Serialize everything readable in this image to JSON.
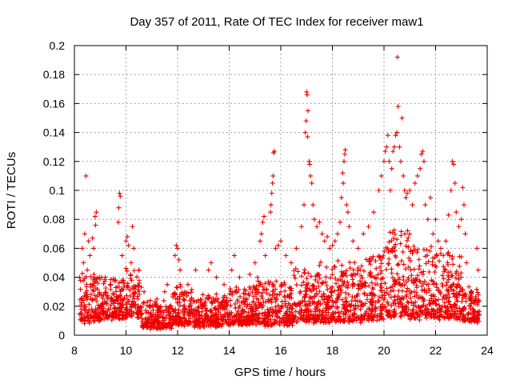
{
  "chart_data": {
    "type": "scatter",
    "title": "Day 357 of 2011, Rate Of TEC Index for receiver maw1",
    "xlabel": "GPS time / hours",
    "ylabel": "ROTI / TECUs",
    "xlim": [
      8,
      24
    ],
    "ylim": [
      0,
      0.2
    ],
    "x_ticks": [
      8,
      10,
      12,
      14,
      16,
      18,
      20,
      22,
      24
    ],
    "x_tick_labels": [
      "8",
      "10",
      "12",
      "14",
      "16",
      "18",
      "20",
      "22",
      "24"
    ],
    "y_ticks": [
      0,
      0.02,
      0.04,
      0.06,
      0.08,
      0.1,
      0.12,
      0.14,
      0.16,
      0.18,
      0.2
    ],
    "y_tick_labels": [
      "0",
      "0.02",
      "0.04",
      "0.06",
      "0.08",
      "0.1",
      "0.12",
      "0.14",
      "0.16",
      "0.18",
      "0.2"
    ],
    "grid": true,
    "marker": "+",
    "color": "#ee0000",
    "background_profile": {
      "description": "dense point cloud per time bin: [hour_start, hour_end, base_roti, spread_roti]",
      "bins": [
        [
          8.2,
          9.0,
          0.008,
          0.035
        ],
        [
          9.0,
          10.0,
          0.01,
          0.03
        ],
        [
          10.0,
          10.6,
          0.012,
          0.035
        ],
        [
          10.6,
          11.8,
          0.004,
          0.018
        ],
        [
          11.8,
          12.6,
          0.006,
          0.03
        ],
        [
          12.6,
          14.0,
          0.005,
          0.022
        ],
        [
          14.0,
          15.0,
          0.006,
          0.028
        ],
        [
          15.0,
          16.5,
          0.006,
          0.032
        ],
        [
          16.5,
          17.5,
          0.008,
          0.038
        ],
        [
          17.5,
          19.2,
          0.008,
          0.045
        ],
        [
          19.2,
          20.0,
          0.01,
          0.05
        ],
        [
          20.0,
          21.0,
          0.012,
          0.065
        ],
        [
          21.0,
          22.0,
          0.01,
          0.055
        ],
        [
          22.0,
          23.0,
          0.01,
          0.05
        ],
        [
          23.0,
          23.7,
          0.008,
          0.025
        ]
      ]
    },
    "series": [
      {
        "name": "maw1 ROTI",
        "points": [
          [
            8.3,
            0.06
          ],
          [
            8.35,
            0.05
          ],
          [
            8.4,
            0.07
          ],
          [
            8.45,
            0.11
          ],
          [
            8.5,
            0.045
          ],
          [
            8.55,
            0.065
          ],
          [
            8.6,
            0.055
          ],
          [
            8.7,
            0.067
          ],
          [
            8.8,
            0.082
          ],
          [
            8.82,
            0.076
          ],
          [
            8.85,
            0.085
          ],
          [
            8.75,
            0.06
          ],
          [
            9.2,
            0.04
          ],
          [
            9.4,
            0.035
          ],
          [
            9.6,
            0.038
          ],
          [
            9.75,
            0.098
          ],
          [
            9.78,
            0.096
          ],
          [
            9.72,
            0.088
          ],
          [
            9.7,
            0.078
          ],
          [
            9.85,
            0.055
          ],
          [
            10.0,
            0.065
          ],
          [
            10.05,
            0.068
          ],
          [
            10.1,
            0.062
          ],
          [
            10.25,
            0.075
          ],
          [
            10.3,
            0.06
          ],
          [
            10.2,
            0.05
          ],
          [
            10.5,
            0.045
          ],
          [
            10.7,
            0.03
          ],
          [
            11.2,
            0.025
          ],
          [
            11.5,
            0.03
          ],
          [
            11.6,
            0.035
          ],
          [
            11.9,
            0.055
          ],
          [
            11.95,
            0.062
          ],
          [
            12.0,
            0.06
          ],
          [
            12.05,
            0.052
          ],
          [
            12.1,
            0.045
          ],
          [
            12.4,
            0.035
          ],
          [
            12.7,
            0.045
          ],
          [
            13.2,
            0.045
          ],
          [
            13.3,
            0.05
          ],
          [
            13.5,
            0.04
          ],
          [
            13.8,
            0.035
          ],
          [
            14.1,
            0.045
          ],
          [
            14.2,
            0.055
          ],
          [
            14.4,
            0.04
          ],
          [
            14.8,
            0.042
          ],
          [
            15.0,
            0.05
          ],
          [
            15.1,
            0.04
          ],
          [
            15.2,
            0.065
          ],
          [
            15.3,
            0.078
          ],
          [
            15.35,
            0.082
          ],
          [
            15.25,
            0.07
          ],
          [
            15.4,
            0.055
          ],
          [
            15.6,
            0.085
          ],
          [
            15.65,
            0.098
          ],
          [
            15.7,
            0.11
          ],
          [
            15.72,
            0.126
          ],
          [
            15.75,
            0.127
          ],
          [
            15.68,
            0.105
          ],
          [
            15.62,
            0.09
          ],
          [
            15.8,
            0.06
          ],
          [
            15.9,
            0.062
          ],
          [
            16.0,
            0.065
          ],
          [
            16.2,
            0.055
          ],
          [
            16.4,
            0.05
          ],
          [
            16.6,
            0.06
          ],
          [
            16.8,
            0.075
          ],
          [
            16.9,
            0.09
          ],
          [
            16.95,
            0.14
          ],
          [
            17.0,
            0.168
          ],
          [
            17.02,
            0.166
          ],
          [
            17.05,
            0.155
          ],
          [
            16.98,
            0.148
          ],
          [
            17.04,
            0.137
          ],
          [
            17.1,
            0.12
          ],
          [
            17.12,
            0.118
          ],
          [
            17.15,
            0.11
          ],
          [
            17.2,
            0.105
          ],
          [
            17.25,
            0.09
          ],
          [
            17.3,
            0.08
          ],
          [
            17.4,
            0.075
          ],
          [
            17.5,
            0.078
          ],
          [
            17.6,
            0.07
          ],
          [
            17.7,
            0.065
          ],
          [
            17.8,
            0.068
          ],
          [
            17.9,
            0.06
          ],
          [
            18.0,
            0.062
          ],
          [
            18.1,
            0.065
          ],
          [
            18.2,
            0.07
          ],
          [
            18.3,
            0.078
          ],
          [
            18.35,
            0.095
          ],
          [
            18.4,
            0.112
          ],
          [
            18.45,
            0.12
          ],
          [
            18.5,
            0.128
          ],
          [
            18.48,
            0.125
          ],
          [
            18.42,
            0.105
          ],
          [
            18.55,
            0.09
          ],
          [
            18.6,
            0.085
          ],
          [
            18.65,
            0.075
          ],
          [
            18.8,
            0.065
          ],
          [
            19.0,
            0.06
          ],
          [
            19.2,
            0.07
          ],
          [
            19.4,
            0.075
          ],
          [
            19.6,
            0.085
          ],
          [
            19.8,
            0.1
          ],
          [
            19.9,
            0.11
          ],
          [
            20.0,
            0.12
          ],
          [
            20.05,
            0.127
          ],
          [
            20.1,
            0.13
          ],
          [
            20.15,
            0.138
          ],
          [
            20.2,
            0.12
          ],
          [
            20.25,
            0.1
          ],
          [
            20.3,
            0.115
          ],
          [
            20.35,
            0.127
          ],
          [
            20.4,
            0.13
          ],
          [
            20.45,
            0.138
          ],
          [
            20.5,
            0.14
          ],
          [
            20.52,
            0.192
          ],
          [
            20.55,
            0.158
          ],
          [
            20.6,
            0.13
          ],
          [
            20.65,
            0.12
          ],
          [
            20.7,
            0.15
          ],
          [
            20.75,
            0.11
          ],
          [
            20.8,
            0.1
          ],
          [
            20.85,
            0.095
          ],
          [
            20.9,
            0.098
          ],
          [
            21.0,
            0.1
          ],
          [
            21.1,
            0.09
          ],
          [
            21.2,
            0.105
          ],
          [
            21.3,
            0.11
          ],
          [
            21.4,
            0.115
          ],
          [
            21.45,
            0.125
          ],
          [
            21.5,
            0.127
          ],
          [
            21.55,
            0.12
          ],
          [
            21.6,
            0.09
          ],
          [
            21.7,
            0.08
          ],
          [
            21.8,
            0.095
          ],
          [
            21.9,
            0.07
          ],
          [
            22.0,
            0.08
          ],
          [
            22.1,
            0.065
          ],
          [
            22.2,
            0.06
          ],
          [
            22.3,
            0.055
          ],
          [
            22.4,
            0.065
          ],
          [
            22.5,
            0.083
          ],
          [
            22.6,
            0.1
          ],
          [
            22.65,
            0.12
          ],
          [
            22.7,
            0.118
          ],
          [
            22.75,
            0.105
          ],
          [
            22.8,
            0.085
          ],
          [
            22.9,
            0.075
          ],
          [
            23.0,
            0.08
          ],
          [
            23.05,
            0.102
          ],
          [
            23.1,
            0.09
          ],
          [
            23.15,
            0.07
          ],
          [
            23.2,
            0.05
          ],
          [
            23.4,
            0.03
          ],
          [
            23.6,
            0.06
          ],
          [
            23.65,
            0.045
          ]
        ]
      }
    ]
  }
}
